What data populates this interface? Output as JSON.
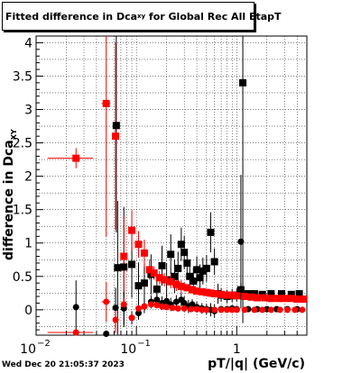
{
  "title_main": "Fitted difference in Dca",
  "title_sub": "xy",
  "title_rest": " for Global Rec All EtapT",
  "timestamp": "Wed Dec 20 21:05:37 2023",
  "chart_data": {
    "type": "scatter",
    "xlabel": "pT/|q| (GeV/c)",
    "ylabel_main": "difference in Dca",
    "ylabel_sub": "XY",
    "x_scale": "log",
    "xlim": [
      0.01,
      5
    ],
    "ylim": [
      -0.38,
      4.1
    ],
    "grid": true,
    "y_ticks": [
      0,
      0.5,
      1,
      1.5,
      2,
      2.5,
      3,
      3.5,
      4
    ],
    "y_tick_labels": [
      "0",
      "0.5",
      "1",
      "1.5",
      "2",
      "2.5",
      "3",
      "3.5",
      "4"
    ],
    "x_tick_labels": [
      {
        "v": 0.01,
        "base": "10",
        "exp": "−2"
      },
      {
        "v": 0.1,
        "base": "10",
        "exp": "−1"
      },
      {
        "v": 1,
        "base": "1",
        "exp": ""
      }
    ],
    "series": [
      {
        "color": "#000000",
        "marker": "square",
        "points": [
          [
            0.063,
            2.76,
            0,
            1.6
          ],
          [
            0.065,
            0.63,
            0,
            1.0
          ],
          [
            0.075,
            0.64,
            0,
            0.9
          ],
          [
            0.09,
            0.68,
            0,
            0.5
          ],
          [
            0.105,
            0.36,
            0,
            0.35
          ],
          [
            0.12,
            0.4,
            0,
            0.3
          ],
          [
            0.14,
            0.53,
            0,
            0.3
          ],
          [
            0.16,
            0.31,
            0,
            0.25
          ],
          [
            0.18,
            0.66,
            0,
            0.3
          ],
          [
            0.2,
            0.45,
            0,
            0.25
          ],
          [
            0.22,
            0.83,
            0,
            0.3
          ],
          [
            0.24,
            0.5,
            0,
            0.25
          ],
          [
            0.26,
            0.62,
            0,
            0.25
          ],
          [
            0.28,
            0.98,
            0,
            0.25
          ],
          [
            0.3,
            0.86,
            0,
            0.25
          ],
          [
            0.32,
            0.7,
            0,
            0.2
          ],
          [
            0.34,
            0.5,
            0,
            0.2
          ],
          [
            0.37,
            0.43,
            0,
            0.2
          ],
          [
            0.4,
            0.6,
            0,
            0.2
          ],
          [
            0.43,
            0.48,
            0,
            0.2
          ],
          [
            0.46,
            0.58,
            0,
            0.2
          ],
          [
            0.5,
            0.62,
            0,
            0.2
          ],
          [
            0.55,
            1.16,
            0,
            0.3
          ],
          [
            0.6,
            0.72,
            0,
            0.2
          ],
          [
            0.65,
            0.24,
            0,
            0.15
          ],
          [
            0.7,
            0.22,
            0,
            0.1
          ],
          [
            0.8,
            0.2,
            0,
            0.1
          ],
          [
            0.9,
            0.21,
            0,
            0.1
          ],
          [
            1.0,
            0.22,
            0,
            0.1
          ],
          [
            1.1,
            0.3,
            0,
            0.1
          ],
          [
            1.15,
            3.4,
            0,
            3.6
          ],
          [
            1.3,
            0.24,
            0,
            0.05
          ],
          [
            1.5,
            0.24,
            0,
            0.05
          ],
          [
            1.8,
            0.23,
            0,
            0.05
          ],
          [
            2.2,
            0.24,
            0,
            0.05
          ],
          [
            2.8,
            0.24,
            0,
            0.05
          ],
          [
            3.5,
            0.23,
            0,
            0.05
          ],
          [
            4.2,
            0.24,
            0,
            0.05
          ]
        ]
      },
      {
        "color": "#ff0000",
        "marker": "square",
        "points": [
          [
            0.025,
            2.27,
            0.012,
            0.15
          ],
          [
            0.05,
            3.09,
            0.005,
            2.0
          ],
          [
            0.062,
            2.6,
            0.003,
            1.4
          ],
          [
            0.075,
            0.8,
            0,
            0.6
          ],
          [
            0.09,
            1.19,
            0,
            0.3
          ],
          [
            0.105,
            0.98,
            0,
            0.2
          ],
          [
            0.12,
            0.85,
            0,
            0.2
          ],
          [
            0.135,
            0.6,
            0,
            0.15
          ],
          [
            0.15,
            0.55,
            0,
            0.1
          ],
          [
            0.17,
            0.48,
            0,
            0.1
          ],
          [
            0.19,
            0.45,
            0,
            0.1
          ],
          [
            0.22,
            0.42,
            0,
            0.1
          ],
          [
            0.25,
            0.38,
            0,
            0.1
          ],
          [
            0.28,
            0.35,
            0,
            0.1
          ],
          [
            0.32,
            0.33,
            0,
            0.05
          ],
          [
            0.36,
            0.3,
            0,
            0.05
          ],
          [
            0.4,
            0.28,
            0,
            0.05
          ],
          [
            0.45,
            0.27,
            0,
            0.05
          ],
          [
            0.5,
            0.26,
            0,
            0.05
          ],
          [
            0.55,
            0.25,
            0,
            0.05
          ],
          [
            0.6,
            0.24,
            0,
            0.05
          ],
          [
            0.7,
            0.23,
            0,
            0.04
          ],
          [
            0.8,
            0.22,
            0,
            0.04
          ],
          [
            0.9,
            0.22,
            0,
            0.04
          ],
          [
            1.0,
            0.21,
            0,
            0.04
          ],
          [
            1.2,
            0.2,
            0,
            0.04
          ],
          [
            1.4,
            0.19,
            0,
            0.04
          ],
          [
            1.6,
            0.18,
            0,
            0.04
          ],
          [
            1.9,
            0.18,
            0,
            0.04
          ],
          [
            2.2,
            0.17,
            0,
            0.04
          ],
          [
            2.6,
            0.17,
            0,
            0.04
          ],
          [
            3.0,
            0.17,
            0,
            0.04
          ],
          [
            3.5,
            0.17,
            0,
            0.04
          ],
          [
            4.0,
            0.16,
            0,
            0.04
          ],
          [
            4.6,
            0.16,
            0,
            0.04
          ]
        ]
      },
      {
        "color": "#000000",
        "marker": "circle",
        "points": [
          [
            0.025,
            0.04,
            0,
            0.4
          ],
          [
            0.05,
            -0.36,
            0,
            0.05
          ],
          [
            0.062,
            0.03,
            0,
            0.3
          ],
          [
            0.075,
            0.02,
            0,
            0.25
          ],
          [
            0.09,
            -0.12,
            0,
            0.1
          ],
          [
            0.105,
            -0.05,
            0,
            0.1
          ],
          [
            0.12,
            0.05,
            0,
            0.1
          ],
          [
            0.14,
            0.12,
            0,
            0.1
          ],
          [
            0.16,
            0.15,
            0,
            0.1
          ],
          [
            0.18,
            0.1,
            0,
            0.1
          ],
          [
            0.2,
            0.13,
            0,
            0.1
          ],
          [
            0.22,
            0.08,
            0,
            0.1
          ],
          [
            0.25,
            0.12,
            0,
            0.1
          ],
          [
            0.28,
            0.15,
            0,
            0.1
          ],
          [
            0.3,
            0.1,
            0,
            0.1
          ],
          [
            0.33,
            0.05,
            0,
            0.1
          ],
          [
            0.36,
            0.08,
            0,
            0.08
          ],
          [
            0.4,
            0.04,
            0,
            0.08
          ],
          [
            0.45,
            0.02,
            0,
            0.08
          ],
          [
            0.5,
            0.01,
            0,
            0.08
          ],
          [
            0.55,
            0.0,
            0,
            0.1
          ],
          [
            0.6,
            -0.02,
            0,
            0.1
          ],
          [
            0.7,
            0.01,
            0,
            0.05
          ],
          [
            0.8,
            0.01,
            0,
            0.05
          ],
          [
            0.9,
            0.02,
            0,
            0.05
          ],
          [
            1.0,
            0.01,
            0,
            0.05
          ],
          [
            1.1,
            1.02,
            0,
            1.0
          ],
          [
            1.3,
            0.01,
            0,
            0.03
          ],
          [
            1.6,
            0.01,
            0,
            0.03
          ],
          [
            2.0,
            0.01,
            0,
            0.03
          ],
          [
            2.5,
            0.01,
            0,
            0.03
          ],
          [
            3.2,
            0.01,
            0,
            0.03
          ],
          [
            4.0,
            0.01,
            0,
            0.03
          ]
        ]
      },
      {
        "color": "#ff0000",
        "marker": "circle",
        "points": [
          [
            0.025,
            -0.34,
            0.012,
            0.02
          ],
          [
            0.05,
            0.12,
            0.005,
            0.3
          ],
          [
            0.062,
            -0.15,
            0.003,
            0.2
          ],
          [
            0.075,
            0.08,
            0,
            0.1
          ],
          [
            0.09,
            -0.12,
            0,
            0.05
          ],
          [
            0.105,
            0.02,
            0,
            0.05
          ],
          [
            0.12,
            0.05,
            0,
            0.05
          ],
          [
            0.14,
            0.08,
            0,
            0.05
          ],
          [
            0.16,
            0.07,
            0,
            0.05
          ],
          [
            0.18,
            0.05,
            0,
            0.04
          ],
          [
            0.2,
            0.04,
            0,
            0.04
          ],
          [
            0.23,
            0.03,
            0,
            0.04
          ],
          [
            0.26,
            0.02,
            0,
            0.04
          ],
          [
            0.3,
            0.02,
            0,
            0.03
          ],
          [
            0.35,
            0.01,
            0,
            0.03
          ],
          [
            0.4,
            0.01,
            0,
            0.03
          ],
          [
            0.45,
            0.0,
            0,
            0.03
          ],
          [
            0.5,
            0.0,
            0,
            0.03
          ],
          [
            0.6,
            0.0,
            0,
            0.03
          ],
          [
            0.7,
            0.0,
            0,
            0.02
          ],
          [
            0.8,
            0.0,
            0,
            0.02
          ],
          [
            0.9,
            0.0,
            0,
            0.02
          ],
          [
            1.0,
            0.0,
            0,
            0.02
          ],
          [
            1.2,
            0.0,
            0,
            0.02
          ],
          [
            1.5,
            0.0,
            0,
            0.02
          ],
          [
            1.8,
            0.0,
            0,
            0.02
          ],
          [
            2.2,
            0.0,
            0,
            0.02
          ],
          [
            2.7,
            0.0,
            0,
            0.02
          ],
          [
            3.2,
            0.0,
            0,
            0.02
          ],
          [
            3.8,
            0.0,
            0,
            0.02
          ],
          [
            4.5,
            0.0,
            0,
            0.02
          ]
        ]
      }
    ]
  }
}
